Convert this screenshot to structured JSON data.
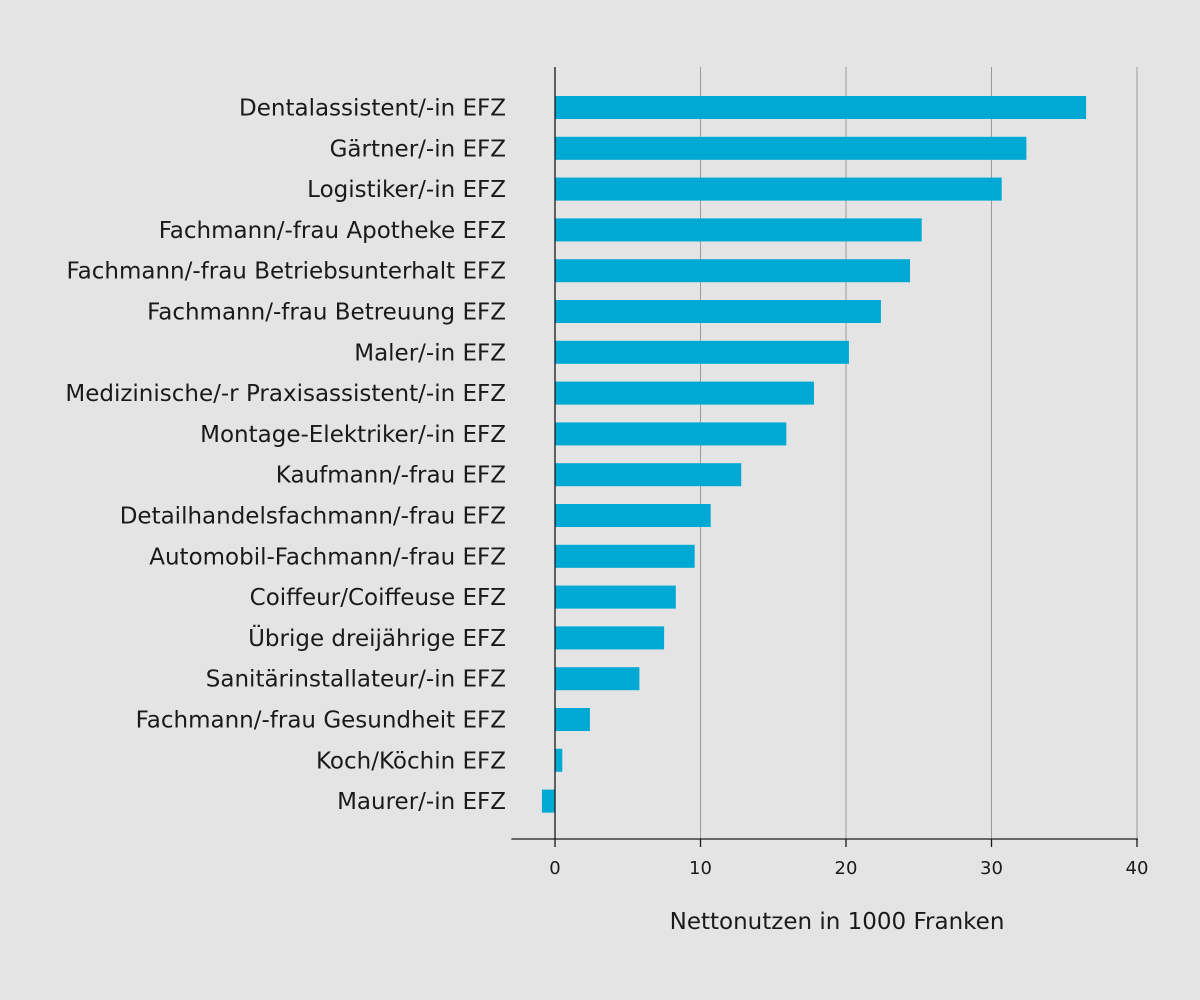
{
  "chart_data": {
    "type": "bar",
    "orientation": "horizontal",
    "categories": [
      "Dentalassistent/-in EFZ",
      "Gärtner/-in EFZ",
      "Logistiker/-in EFZ",
      "Fachmann/-frau Apotheke EFZ",
      "Fachmann/-frau Betriebsunterhalt EFZ",
      "Fachmann/-frau Betreuung EFZ",
      "Maler/-in EFZ",
      "Medizinische/-r Praxisassistent/-in EFZ",
      "Montage-Elektriker/-in EFZ",
      "Kaufmann/-frau EFZ",
      "Detailhandelsfachmann/-frau EFZ",
      "Automobil-Fachmann/-frau EFZ",
      "Coiffeur/Coiffeuse EFZ",
      "Übrige dreijährige EFZ",
      "Sanitärinstallateur/-in EFZ",
      "Fachmann/-frau Gesundheit EFZ",
      "Koch/Köchin EFZ",
      "Maurer/-in EFZ"
    ],
    "values": [
      36.5,
      32.4,
      30.7,
      25.2,
      24.4,
      22.4,
      20.2,
      17.8,
      15.9,
      12.8,
      10.7,
      9.6,
      8.3,
      7.5,
      5.8,
      2.4,
      0.5,
      -0.9
    ],
    "title": "",
    "xlabel": "Nettonutzen in 1000 Franken",
    "ylabel": "",
    "xlim": [
      -3,
      40
    ],
    "xticks": [
      0,
      10,
      20,
      30,
      40
    ],
    "grid": "vertical",
    "legend": "none",
    "bar_color": "#00a9d4",
    "gridline_color": "#9a9a9a",
    "background_color": "#e4e4e4"
  }
}
